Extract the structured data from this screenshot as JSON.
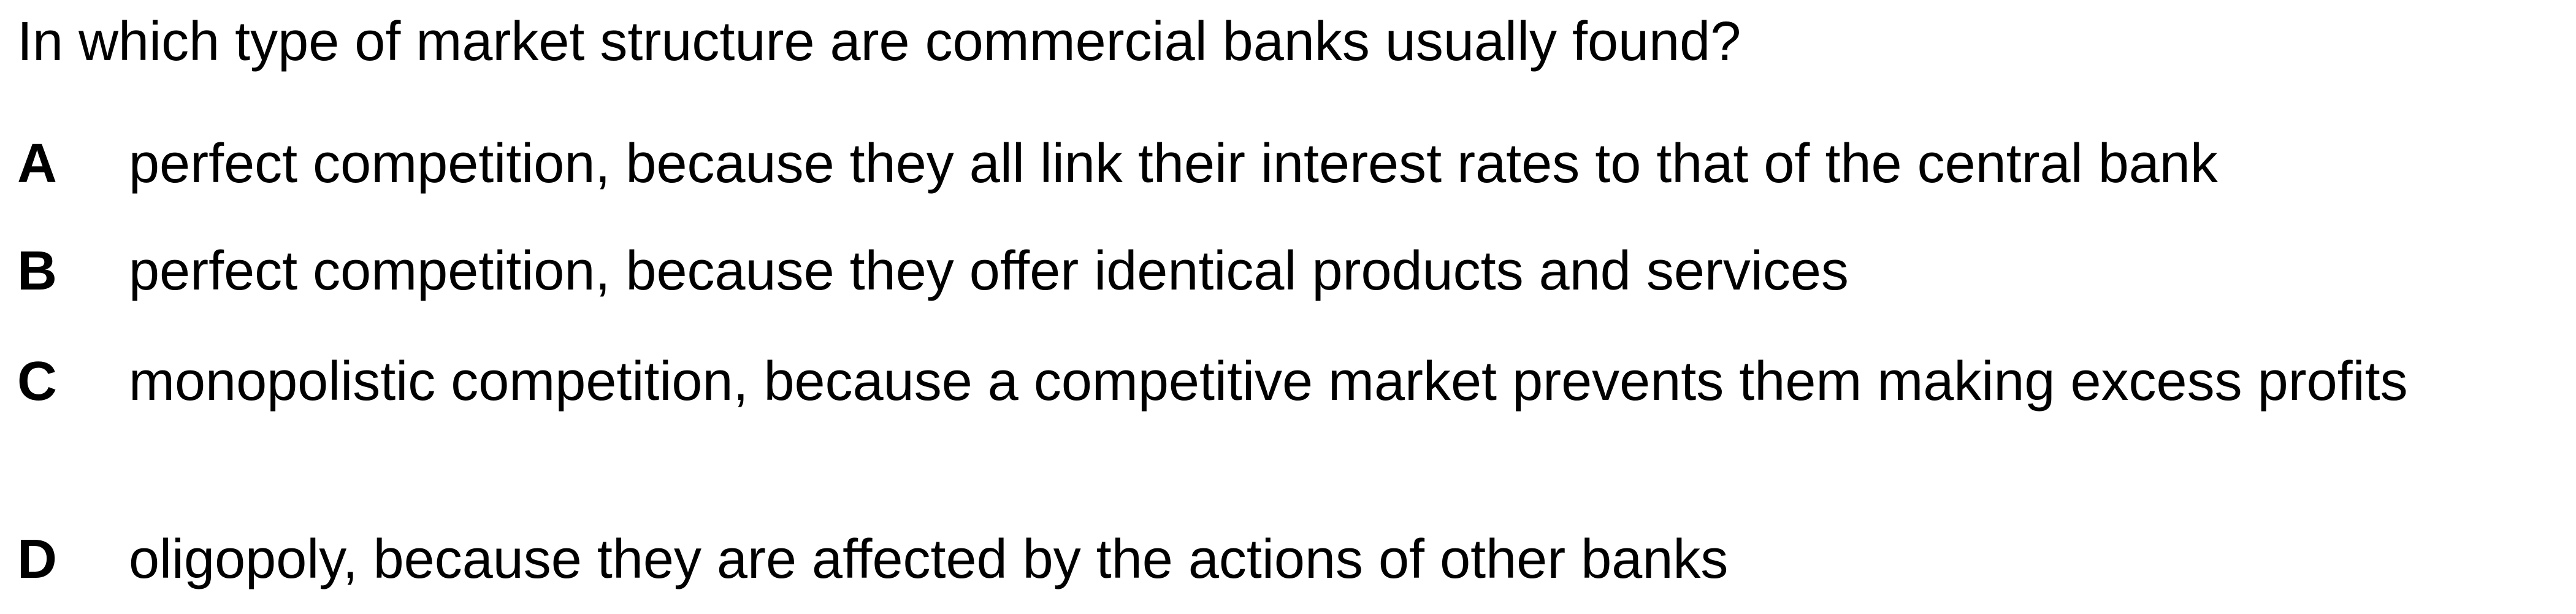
{
  "question": {
    "stem": "In which type of market structure are commercial banks usually found?"
  },
  "options": [
    {
      "letter": "A",
      "text": "perfect competition, because they all link their interest rates to that of the central bank"
    },
    {
      "letter": "B",
      "text": "perfect competition, because they offer identical products and services"
    },
    {
      "letter": "C",
      "text": "monopolistic competition, because a competitive market prevents them making excess profits"
    },
    {
      "letter": "D",
      "text": "oligopoly, because they are affected by the actions of other banks"
    }
  ]
}
